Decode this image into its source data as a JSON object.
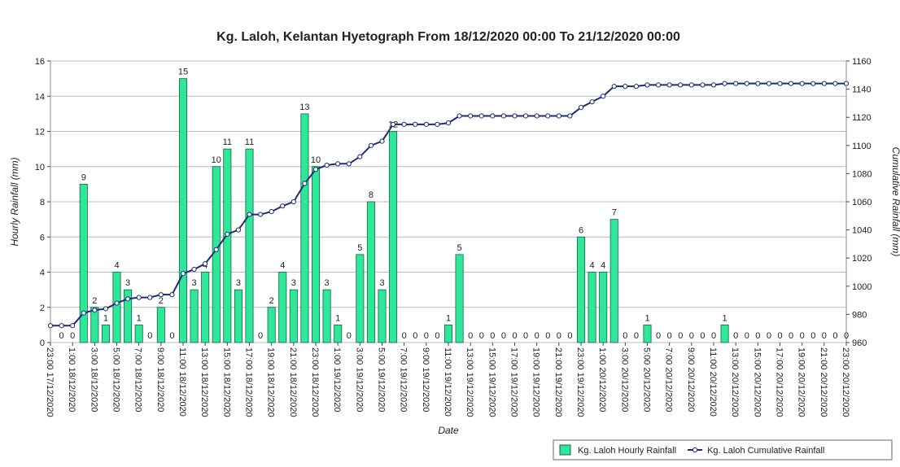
{
  "chart_data": {
    "type": "bar",
    "title": "Kg. Laloh, Kelantan Hyetograph From 18/12/2020 00:00 To 21/12/2020 00:00",
    "xlabel": "Date",
    "ylabel": "Hourly Rainfall (mm)",
    "y2label": "Cumulative Rainfall (mm)",
    "categories": [
      "23:00 17/12/2020",
      null,
      "1:00 18/12/2020",
      null,
      "3:00 18/12/2020",
      null,
      "5:00 18/12/2020",
      null,
      "7:00 18/12/2020",
      null,
      "9:00 18/12/2020",
      null,
      "11:00 18/12/2020",
      null,
      "13:00 18/12/2020",
      null,
      "15:00 18/12/2020",
      null,
      "17:00 18/12/2020",
      null,
      "19:00 18/12/2020",
      null,
      "21:00 18/12/2020",
      null,
      "23:00 18/12/2020",
      null,
      "1:00 19/12/2020",
      null,
      "3:00 19/12/2020",
      null,
      "5:00 19/12/2020",
      null,
      "7:00 19/12/2020",
      null,
      "9:00 19/12/2020",
      null,
      "11:00 19/12/2020",
      null,
      "13:00 19/12/2020",
      null,
      "15:00 19/12/2020",
      null,
      "17:00 19/12/2020",
      null,
      "19:00 19/12/2020",
      null,
      "21:00 19/12/2020",
      null,
      "23:00 19/12/2020",
      null,
      "1:00 20/12/2020",
      null,
      "3:00 20/12/2020",
      null,
      "5:00 20/12/2020",
      null,
      "7:00 20/12/2020",
      null,
      "9:00 20/12/2020",
      null,
      "11:00 20/12/2020",
      null,
      "13:00 20/12/2020",
      null,
      "15:00 20/12/2020",
      null,
      "17:00 20/12/2020",
      null,
      "19:00 20/12/2020",
      null,
      "21:00 20/12/2020",
      null,
      "23:00 20/12/2020"
    ],
    "series": [
      {
        "name": "Kg. Laloh Hourly Rainfall",
        "type": "bar",
        "color": "#2ee89a",
        "values": [
          null,
          0,
          0,
          9,
          2,
          1,
          4,
          3,
          1,
          0,
          2,
          0,
          15,
          3,
          4,
          10,
          11,
          3,
          11,
          0,
          2,
          4,
          3,
          13,
          10,
          3,
          1,
          0,
          5,
          8,
          3,
          12,
          0,
          0,
          0,
          0,
          1,
          5,
          0,
          0,
          0,
          0,
          0,
          0,
          0,
          0,
          0,
          0,
          6,
          4,
          4,
          7,
          0,
          0,
          1,
          0,
          0,
          0,
          0,
          0,
          0,
          1,
          0,
          0,
          0,
          0,
          0,
          0,
          0,
          0,
          0,
          0,
          0
        ]
      },
      {
        "name": "Kg. Laloh Cumulative Rainfall",
        "type": "line",
        "axis": "y2",
        "color": "#1c2a7a",
        "values": [
          972,
          972,
          972,
          981,
          983,
          984,
          988,
          991,
          992,
          992,
          994,
          994,
          1009,
          1012,
          1016,
          1026,
          1037,
          1040,
          1051,
          1051,
          1053,
          1057,
          1060,
          1073,
          1083,
          1086,
          1087,
          1087,
          1092,
          1100,
          1103,
          1115,
          1115,
          1115,
          1115,
          1115,
          1116,
          1121,
          1121,
          1121,
          1121,
          1121,
          1121,
          1121,
          1121,
          1121,
          1121,
          1121,
          1127,
          1131,
          1135,
          1142,
          1142,
          1142,
          1143,
          1143,
          1143,
          1143,
          1143,
          1143,
          1143,
          1144,
          1144,
          1144,
          1144,
          1144,
          1144,
          1144,
          1144,
          1144,
          1144,
          1144,
          1144
        ]
      }
    ],
    "ylim": [
      0,
      16
    ],
    "yticks": [
      0,
      2,
      4,
      6,
      8,
      10,
      12,
      14,
      16
    ],
    "y2lim": [
      960,
      1160
    ],
    "y2ticks": [
      960,
      980,
      1000,
      1020,
      1040,
      1060,
      1080,
      1100,
      1120,
      1140,
      1160
    ],
    "grid": true,
    "legend": "bottom-right"
  }
}
